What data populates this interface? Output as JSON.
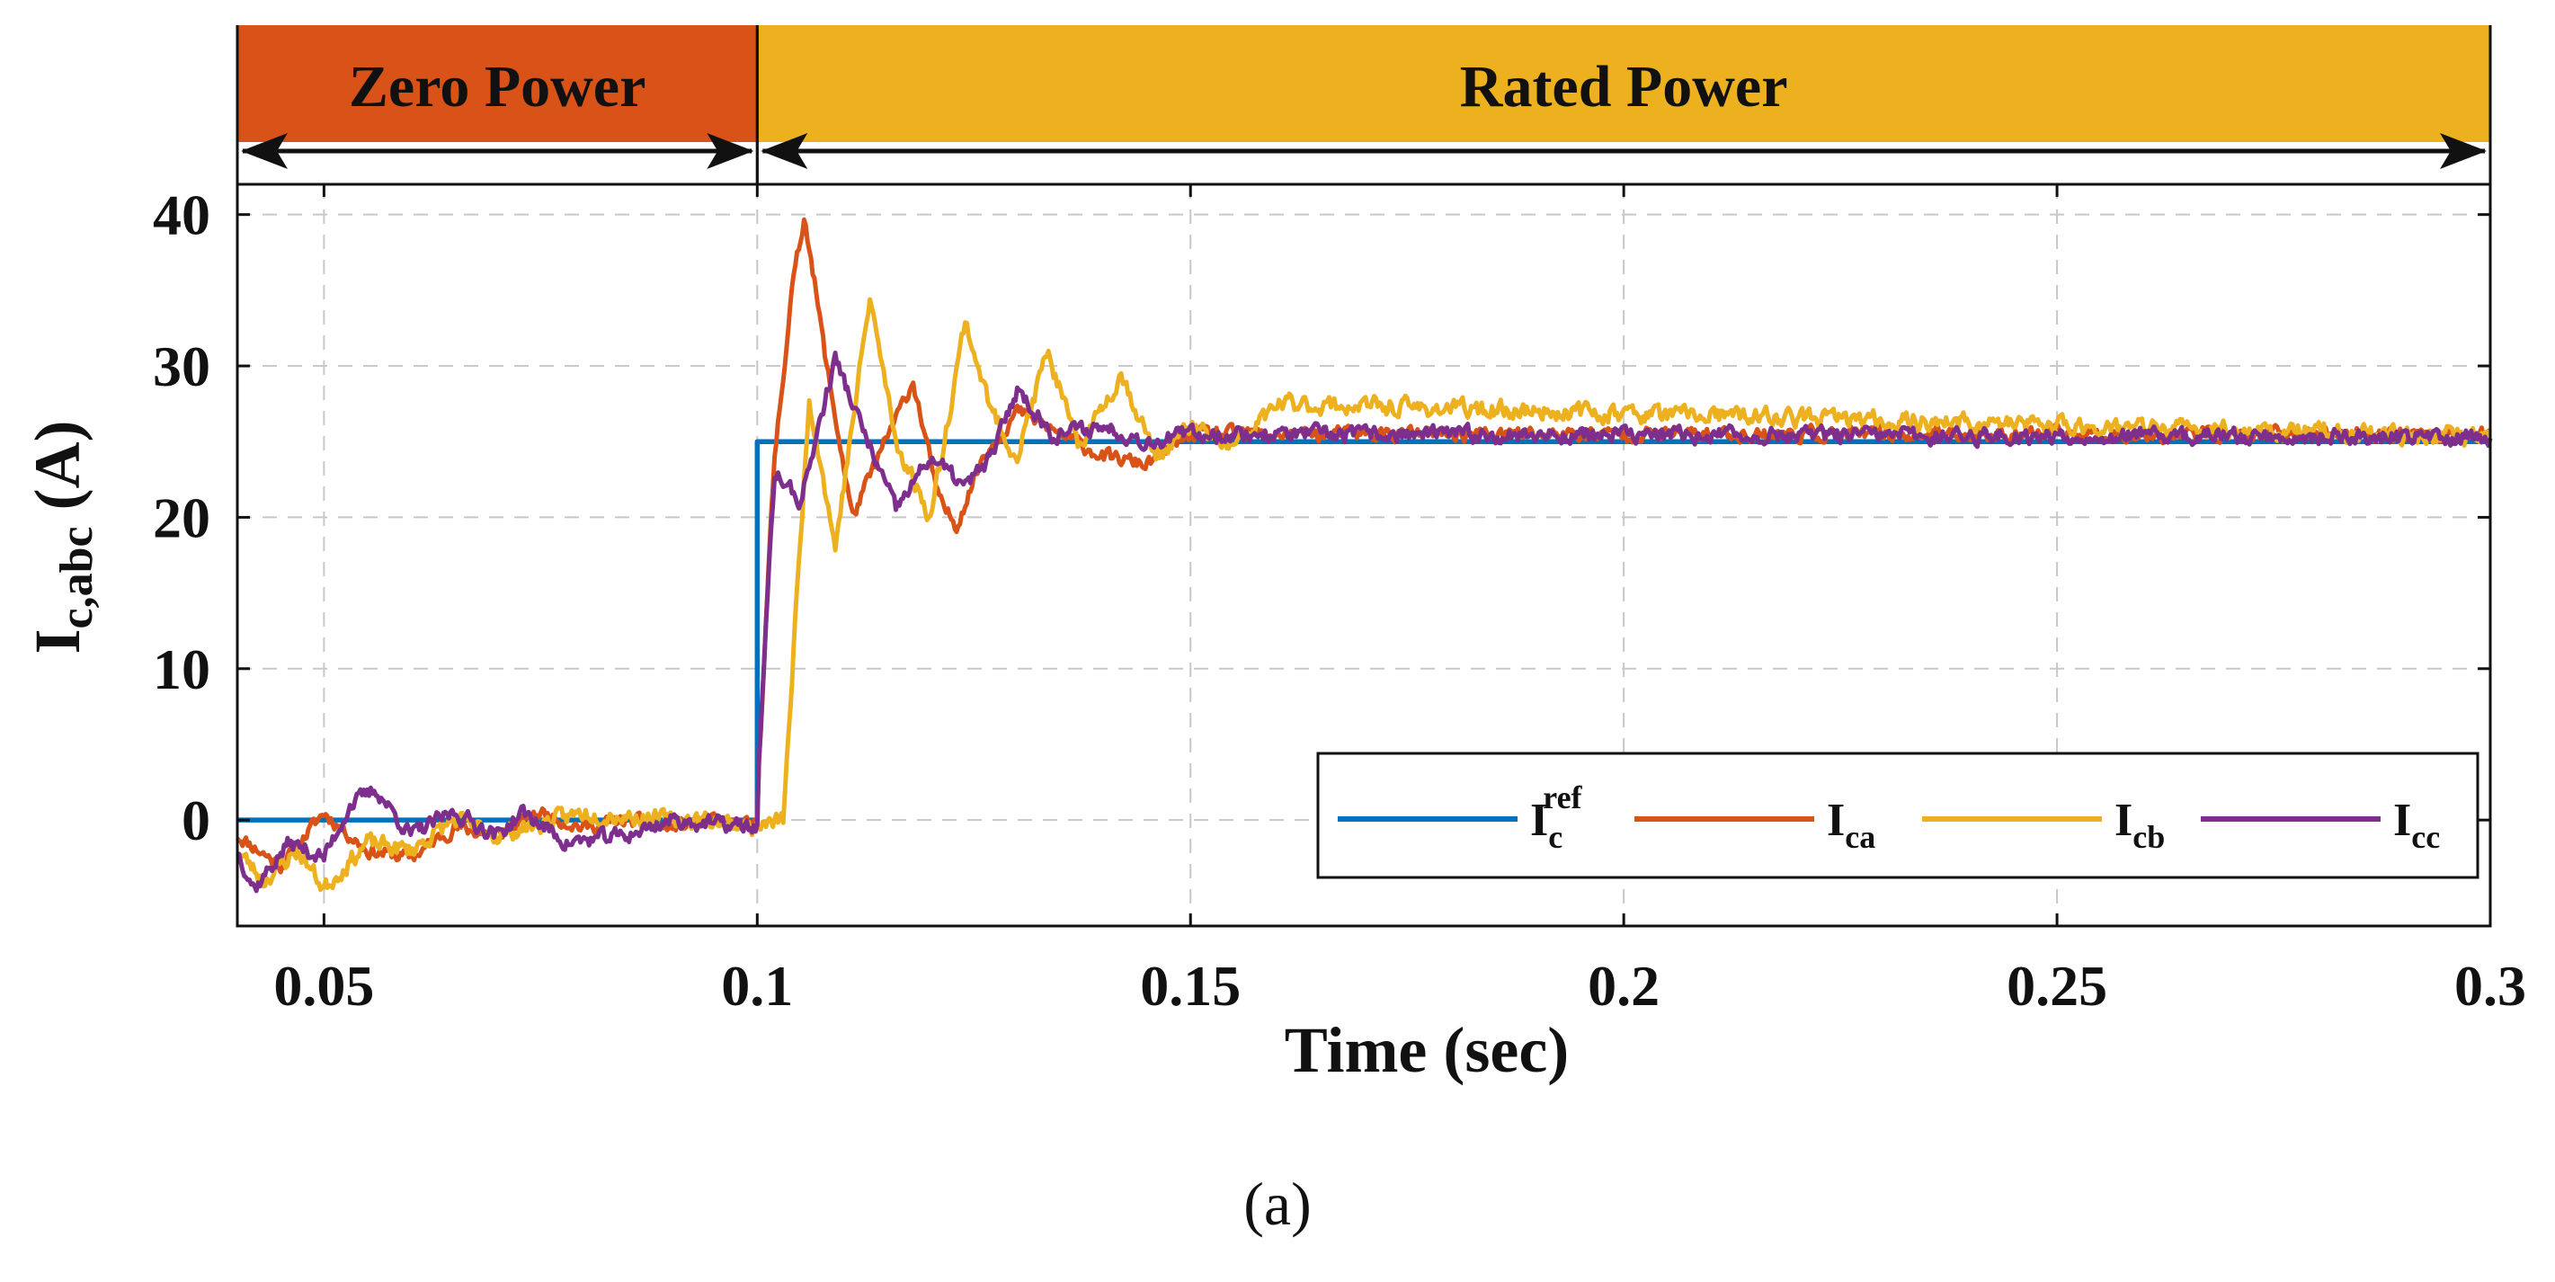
{
  "chart_data": {
    "type": "line",
    "panel": "(a)",
    "xlabel": "Time (sec)",
    "ylabel": {
      "main": "I",
      "sub": "c,abc",
      "unit": "(A)"
    },
    "xlim": [
      0.04,
      0.3
    ],
    "ylim": [
      -7,
      42
    ],
    "xticks": [
      0.05,
      0.1,
      0.15,
      0.2,
      0.25,
      0.3
    ],
    "xtick_labels": [
      "0.05",
      "0.1",
      "0.15",
      "0.2",
      "0.25",
      "0.3"
    ],
    "yticks": [
      0,
      10,
      20,
      30,
      40
    ],
    "ytick_labels": [
      "0",
      "10",
      "20",
      "30",
      "40"
    ],
    "grid": true,
    "legend_position": "lower-right",
    "regions": [
      {
        "label": "Zero Power",
        "x_start": 0.04,
        "x_end": 0.1,
        "color": "#D95319"
      },
      {
        "label": "Rated Power",
        "x_start": 0.1,
        "x_end": 0.3,
        "color": "#EDB120"
      }
    ],
    "series": [
      {
        "name": "I_c^ref",
        "legend_main": "I",
        "legend_sub": "c",
        "legend_sup": "ref",
        "color": "#0072BD",
        "points": [
          [
            0.04,
            0
          ],
          [
            0.1,
            0
          ],
          [
            0.1,
            25
          ],
          [
            0.3,
            25
          ]
        ]
      },
      {
        "name": "I_ca",
        "legend_main": "I",
        "legend_sub": "ca",
        "legend_sup": "",
        "color": "#D95319",
        "points": [
          [
            0.04,
            -1
          ],
          [
            0.045,
            -3
          ],
          [
            0.05,
            0.5
          ],
          [
            0.055,
            -2
          ],
          [
            0.06,
            -2.5
          ],
          [
            0.065,
            -0.5
          ],
          [
            0.07,
            -1
          ],
          [
            0.075,
            0.5
          ],
          [
            0.08,
            -0.5
          ],
          [
            0.085,
            0
          ],
          [
            0.09,
            -0.5
          ],
          [
            0.095,
            0
          ],
          [
            0.1,
            -0.5
          ],
          [
            0.1,
            2
          ],
          [
            0.102,
            24
          ],
          [
            0.104,
            35
          ],
          [
            0.1055,
            40
          ],
          [
            0.108,
            30
          ],
          [
            0.111,
            20
          ],
          [
            0.114,
            24
          ],
          [
            0.118,
            29
          ],
          [
            0.121,
            21
          ],
          [
            0.123,
            19.5
          ],
          [
            0.126,
            24
          ],
          [
            0.13,
            27
          ],
          [
            0.135,
            25.5
          ],
          [
            0.14,
            24
          ],
          [
            0.145,
            23.5
          ],
          [
            0.15,
            25.5
          ],
          [
            0.3,
            25.5
          ]
        ],
        "noise": 0.8,
        "noise_seed": 11
      },
      {
        "name": "I_cb",
        "legend_main": "I",
        "legend_sub": "cb",
        "legend_sup": "",
        "color": "#EDB120",
        "points": [
          [
            0.04,
            -2
          ],
          [
            0.043,
            -4
          ],
          [
            0.047,
            -2
          ],
          [
            0.05,
            -4.5
          ],
          [
            0.055,
            -1.5
          ],
          [
            0.06,
            -2
          ],
          [
            0.065,
            0
          ],
          [
            0.07,
            -1
          ],
          [
            0.08,
            0.5
          ],
          [
            0.09,
            0
          ],
          [
            0.095,
            0
          ],
          [
            0.1,
            -0.5
          ],
          [
            0.103,
            0
          ],
          [
            0.106,
            28
          ],
          [
            0.109,
            18
          ],
          [
            0.113,
            34.5
          ],
          [
            0.116,
            25
          ],
          [
            0.12,
            20
          ],
          [
            0.124,
            33
          ],
          [
            0.127,
            27
          ],
          [
            0.13,
            24
          ],
          [
            0.1335,
            31
          ],
          [
            0.137,
            24.5
          ],
          [
            0.142,
            29.5
          ],
          [
            0.146,
            24
          ],
          [
            0.15,
            26
          ],
          [
            0.155,
            24.5
          ],
          [
            0.16,
            27.5
          ],
          [
            0.3,
            25.3
          ]
        ],
        "noise": 1.0,
        "noise_seed": 23
      },
      {
        "name": "I_cc",
        "legend_main": "I",
        "legend_sub": "cc",
        "legend_sup": "",
        "color": "#7E2F8E",
        "points": [
          [
            0.04,
            -2
          ],
          [
            0.042,
            -4.5
          ],
          [
            0.046,
            -1.5
          ],
          [
            0.05,
            -2.5
          ],
          [
            0.053,
            1
          ],
          [
            0.056,
            2
          ],
          [
            0.06,
            -1
          ],
          [
            0.065,
            0.5
          ],
          [
            0.07,
            -1
          ],
          [
            0.073,
            0.5
          ],
          [
            0.078,
            -1.5
          ],
          [
            0.085,
            -1
          ],
          [
            0.09,
            0
          ],
          [
            0.1,
            -0.5
          ],
          [
            0.1,
            2
          ],
          [
            0.102,
            23
          ],
          [
            0.105,
            21
          ],
          [
            0.109,
            30.5
          ],
          [
            0.112,
            26
          ],
          [
            0.116,
            20.5
          ],
          [
            0.12,
            24
          ],
          [
            0.124,
            22
          ],
          [
            0.127,
            24
          ],
          [
            0.13,
            28.5
          ],
          [
            0.134,
            25.5
          ],
          [
            0.14,
            26
          ],
          [
            0.145,
            25
          ],
          [
            0.15,
            25.5
          ],
          [
            0.3,
            25.3
          ]
        ],
        "noise": 0.9,
        "noise_seed": 37
      }
    ]
  }
}
